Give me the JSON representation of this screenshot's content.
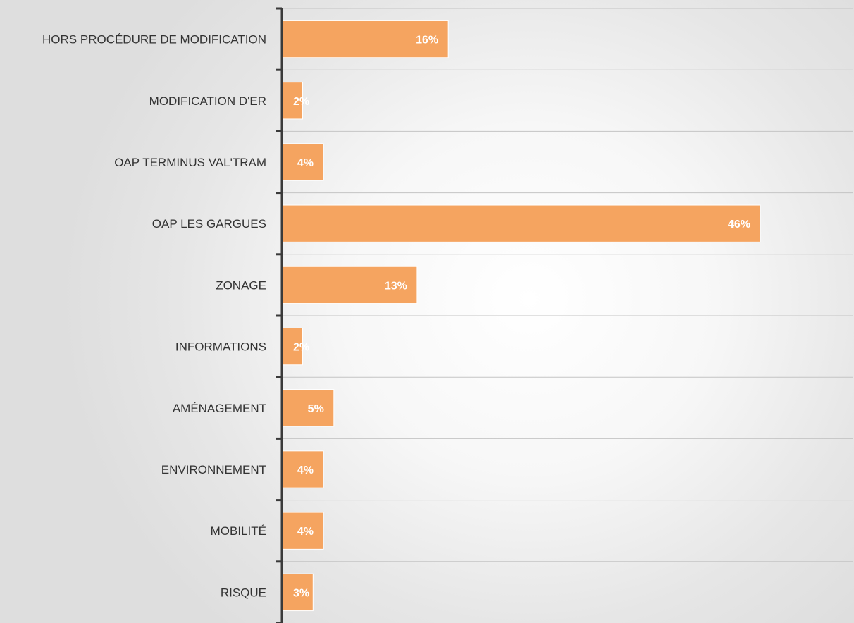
{
  "chart_data": {
    "type": "bar",
    "orientation": "horizontal",
    "title": "",
    "xlabel": "",
    "ylabel": "",
    "categories": [
      "HORS PROCÉDURE DE MODIFICATION",
      "MODIFICATION D'ER",
      "OAP TERMINUS VAL'TRAM",
      "OAP LES GARGUES",
      "ZONAGE",
      "INFORMATIONS",
      "AMÉNAGEMENT",
      "ENVIRONNEMENT",
      "MOBILITÉ",
      "RISQUE"
    ],
    "values": [
      16,
      2,
      4,
      46,
      13,
      2,
      5,
      4,
      4,
      3
    ],
    "data_labels": [
      "16%",
      "2%",
      "4%",
      "46%",
      "13%",
      "2%",
      "5%",
      "4%",
      "4%",
      "3%"
    ],
    "xlim": [
      0,
      50
    ],
    "grid": true,
    "legend": "none",
    "colors": {
      "bar": "#F5A460",
      "bar_label": "#FFFFFF",
      "axis": "#3A3A3A",
      "grid": "#C4C4C4",
      "category_text": "#333333"
    }
  }
}
